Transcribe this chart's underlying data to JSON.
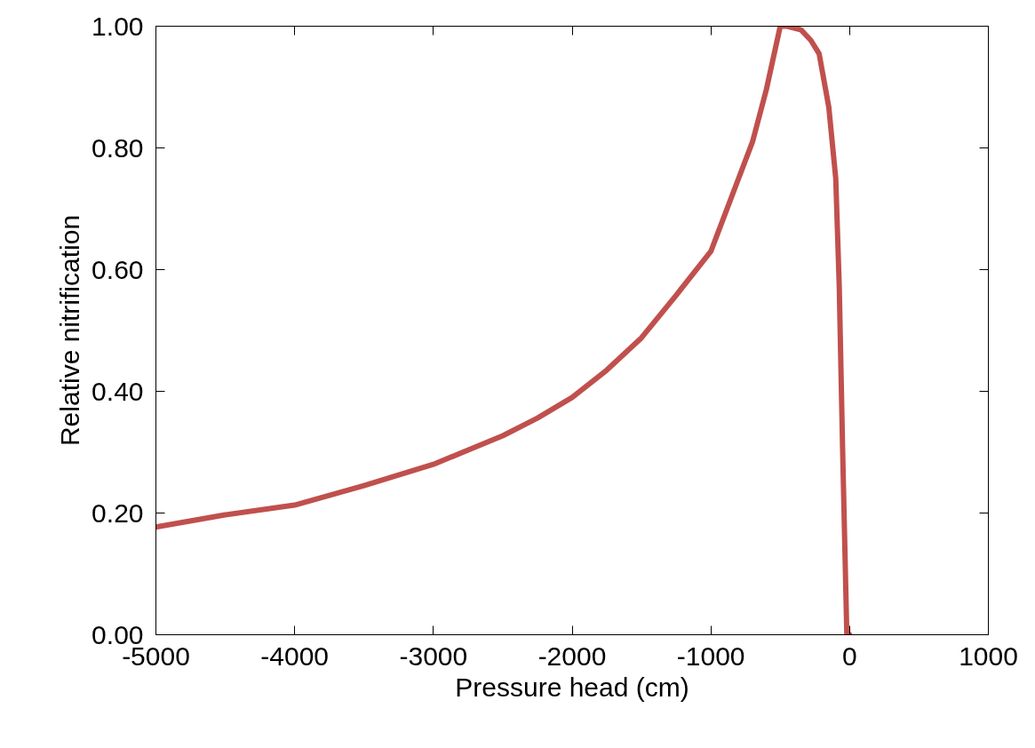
{
  "chart_data": {
    "type": "line",
    "xlabel": "Pressure head (cm)",
    "ylabel": "Relative nitrification",
    "x": [
      -5000,
      -4500,
      -4000,
      -3500,
      -3000,
      -2500,
      -2250,
      -2000,
      -1750,
      -1500,
      -1250,
      -1000,
      -950,
      -900,
      -800,
      -700,
      -600,
      -500,
      -450,
      -350,
      -280,
      -220,
      -150,
      -100,
      -75,
      -50,
      -20,
      0
    ],
    "series": [
      {
        "color": "#c0504d",
        "values": [
          0.177,
          0.197,
          0.213,
          0.245,
          0.28,
          0.327,
          0.356,
          0.39,
          0.435,
          0.488,
          0.558,
          0.63,
          0.66,
          0.69,
          0.75,
          0.81,
          0.896,
          1.0,
          1.0,
          0.994,
          0.977,
          0.955,
          0.867,
          0.75,
          0.575,
          0.3,
          0.0,
          0.0
        ]
      }
    ],
    "xlim": [
      -5000,
      1000
    ],
    "ylim": [
      0,
      1
    ],
    "xticks": [
      -5000,
      -4000,
      -3000,
      -2000,
      -1000,
      0,
      1000
    ],
    "yticks": [
      {
        "value": 0,
        "label": "0.00"
      },
      {
        "value": 0.2,
        "label": "0.20"
      },
      {
        "value": 0.4,
        "label": "0.40"
      },
      {
        "value": 0.6,
        "label": "0.60"
      },
      {
        "value": 0.8,
        "label": "0.80"
      },
      {
        "value": 1.0,
        "label": "1.00"
      }
    ],
    "grid": false,
    "marker": "none",
    "line_style": "solid"
  }
}
